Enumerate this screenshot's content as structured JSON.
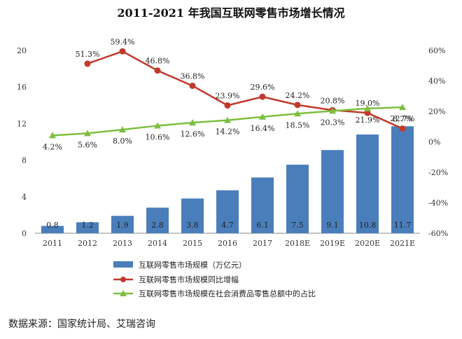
{
  "chart_data": {
    "type": "bar",
    "title": "2011-2021 年我国互联网零售市场增长情况",
    "categories": [
      "2011",
      "2012",
      "2013",
      "2014",
      "2015",
      "2016",
      "2017",
      "2018E",
      "2019E",
      "2020E",
      "2021E"
    ],
    "y_left": {
      "ticks": [
        "0",
        "4",
        "8",
        "12",
        "16",
        "20"
      ],
      "ylim": [
        0,
        20
      ]
    },
    "y_right": {
      "ticks": [
        "-60%",
        "-40%",
        "-20%",
        "0%",
        "20%",
        "40%",
        "60%"
      ],
      "ylim": [
        -60,
        60
      ]
    },
    "series": [
      {
        "name": "互联网零售市场规模（万亿元）",
        "type": "bar",
        "axis": "left",
        "color": "#4a7ebb",
        "values": [
          0.8,
          1.2,
          1.9,
          2.8,
          3.8,
          4.7,
          6.1,
          7.5,
          9.1,
          10.8,
          11.7
        ],
        "labels": [
          "0.8",
          "1.2",
          "1.9",
          "2.8",
          "3.8",
          "4.7",
          "6.1",
          "7.5",
          "9.1",
          "10.8",
          "11.7"
        ]
      },
      {
        "name": "互联网零售市场规模同比增幅",
        "type": "line",
        "axis": "right",
        "color": "#c0392b",
        "values": [
          null,
          51.3,
          59.4,
          46.8,
          36.8,
          23.9,
          29.6,
          24.2,
          20.8,
          19.0,
          8.7
        ],
        "labels": [
          "",
          "51.3%",
          "59.4%",
          "46.8%",
          "36.8%",
          "23.9%",
          "29.6%",
          "24.2%",
          "20.8%",
          "19.0%",
          "8.7%"
        ]
      },
      {
        "name": "互联网零售市场规模在社会消费品零售总额中的占比",
        "type": "line",
        "axis": "right",
        "color": "#7dbf3f",
        "values": [
          4.2,
          5.6,
          8.0,
          10.6,
          12.6,
          14.2,
          16.4,
          18.5,
          20.3,
          21.9,
          22.7
        ],
        "labels": [
          "4.2%",
          "5.6%",
          "8.0%",
          "10.6%",
          "12.6%",
          "14.2%",
          "16.4%",
          "18.5%",
          "20.3%",
          "21.9%",
          "22.7%"
        ]
      }
    ],
    "grid": false,
    "legend_position": "bottom"
  },
  "source": "数据来源：国家统计局、艾瑞咨询"
}
